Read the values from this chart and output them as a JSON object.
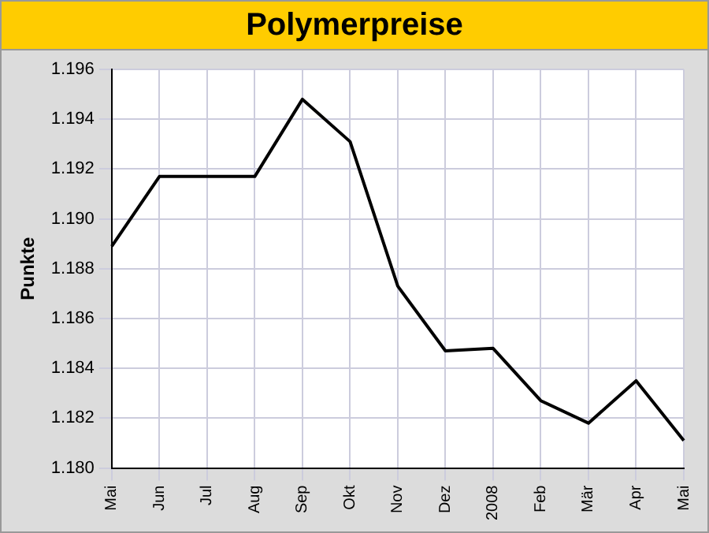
{
  "chart_data": {
    "type": "line",
    "title": "Polymerpreise",
    "ylabel": "Punkte",
    "categories": [
      "Mai",
      "Jun",
      "Jul",
      "Aug",
      "Sep",
      "Okt",
      "Nov",
      "Dez",
      "2008",
      "Feb",
      "Mär",
      "Apr",
      "Mai"
    ],
    "series": [
      {
        "color": "#000000",
        "values": [
          1.1889,
          1.1917,
          1.1917,
          1.1917,
          1.1948,
          1.1931,
          1.1873,
          1.1847,
          1.1848,
          1.1827,
          1.1818,
          1.1835,
          1.1811
        ]
      }
    ],
    "ylim": [
      1.18,
      1.196
    ],
    "yticks": [
      {
        "value": 1.18,
        "label": "1.180"
      },
      {
        "value": 1.182,
        "label": "1.182"
      },
      {
        "value": 1.184,
        "label": "1.184"
      },
      {
        "value": 1.186,
        "label": "1.186"
      },
      {
        "value": 1.188,
        "label": "1.188"
      },
      {
        "value": 1.19,
        "label": "1.190"
      },
      {
        "value": 1.192,
        "label": "1.192"
      },
      {
        "value": 1.194,
        "label": "1.194"
      },
      {
        "value": 1.196,
        "label": "1.196"
      }
    ],
    "grid": true,
    "marker": "none",
    "line_style": "solid"
  }
}
